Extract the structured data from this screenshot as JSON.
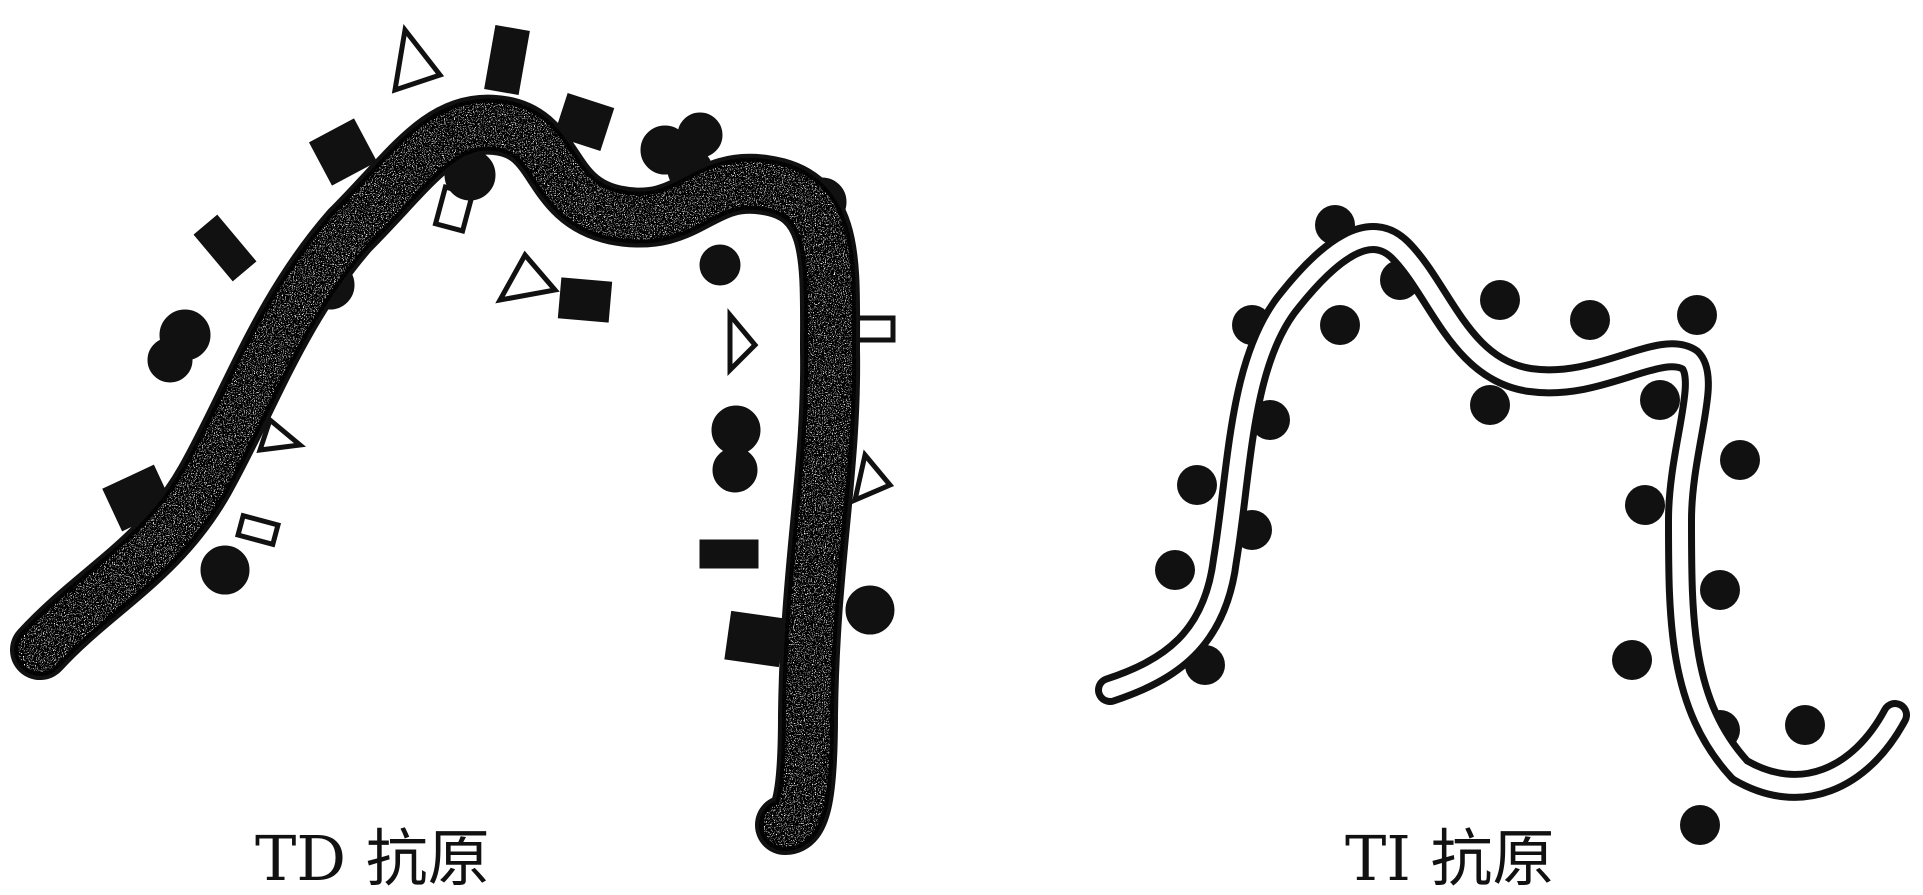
{
  "figure": {
    "td_antigen": {
      "caption": "TD 抗原"
    },
    "ti_antigen": {
      "caption": "TI 抗原"
    }
  },
  "colors": {
    "ink": "#111111",
    "paper": "#ffffff"
  }
}
